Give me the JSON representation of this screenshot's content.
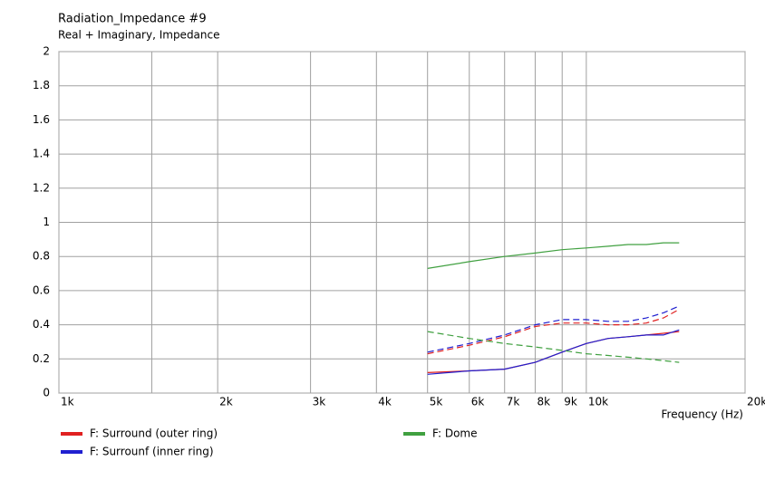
{
  "chart_data": {
    "type": "line",
    "title": "Radiation_Impedance #9",
    "subtitle": "Real + Imaginary, Impedance",
    "x_label": "Frequency  (Hz)",
    "x_scale": "log",
    "xlim": [
      1000,
      20000
    ],
    "xticks": [
      {
        "value": 1000,
        "label": "1k"
      },
      {
        "value": 2000,
        "label": "2k"
      },
      {
        "value": 3000,
        "label": "3k"
      },
      {
        "value": 4000,
        "label": "4k"
      },
      {
        "value": 5000,
        "label": "5k"
      },
      {
        "value": 6000,
        "label": "6k"
      },
      {
        "value": 7000,
        "label": "7k"
      },
      {
        "value": 8000,
        "label": "8k"
      },
      {
        "value": 9000,
        "label": "9k"
      },
      {
        "value": 10000,
        "label": "10k"
      },
      {
        "value": 20000,
        "label": "20k"
      }
    ],
    "minor_xticks": [
      1500
    ],
    "ylim": [
      0,
      2
    ],
    "yticks": [
      0,
      0.2,
      0.4,
      0.6,
      0.8,
      1,
      1.2,
      1.4,
      1.6,
      1.8,
      2
    ],
    "grid": true,
    "x": [
      5000,
      6000,
      7000,
      8000,
      9000,
      10000,
      11000,
      12000,
      13000,
      14000,
      15000
    ],
    "series": [
      {
        "name": "F: Surround (outer ring)",
        "color": "#e02020",
        "real": [
          0.12,
          0.13,
          0.14,
          0.18,
          0.24,
          0.29,
          0.32,
          0.33,
          0.34,
          0.35,
          0.36
        ],
        "imaginary": [
          0.23,
          0.28,
          0.33,
          0.39,
          0.41,
          0.41,
          0.4,
          0.4,
          0.41,
          0.44,
          0.49
        ]
      },
      {
        "name": "F: Surrounf (inner ring)",
        "color": "#2020d0",
        "real": [
          0.11,
          0.13,
          0.14,
          0.18,
          0.24,
          0.29,
          0.32,
          0.33,
          0.34,
          0.34,
          0.37
        ],
        "imaginary": [
          0.24,
          0.29,
          0.34,
          0.4,
          0.43,
          0.43,
          0.42,
          0.42,
          0.44,
          0.47,
          0.51
        ]
      },
      {
        "name": "F: Dome",
        "color": "#40a040",
        "real": [
          0.73,
          0.77,
          0.8,
          0.82,
          0.84,
          0.85,
          0.86,
          0.87,
          0.87,
          0.88,
          0.88
        ],
        "imaginary": [
          0.36,
          0.32,
          0.29,
          0.27,
          0.25,
          0.23,
          0.22,
          0.21,
          0.2,
          0.19,
          0.18
        ]
      }
    ]
  }
}
